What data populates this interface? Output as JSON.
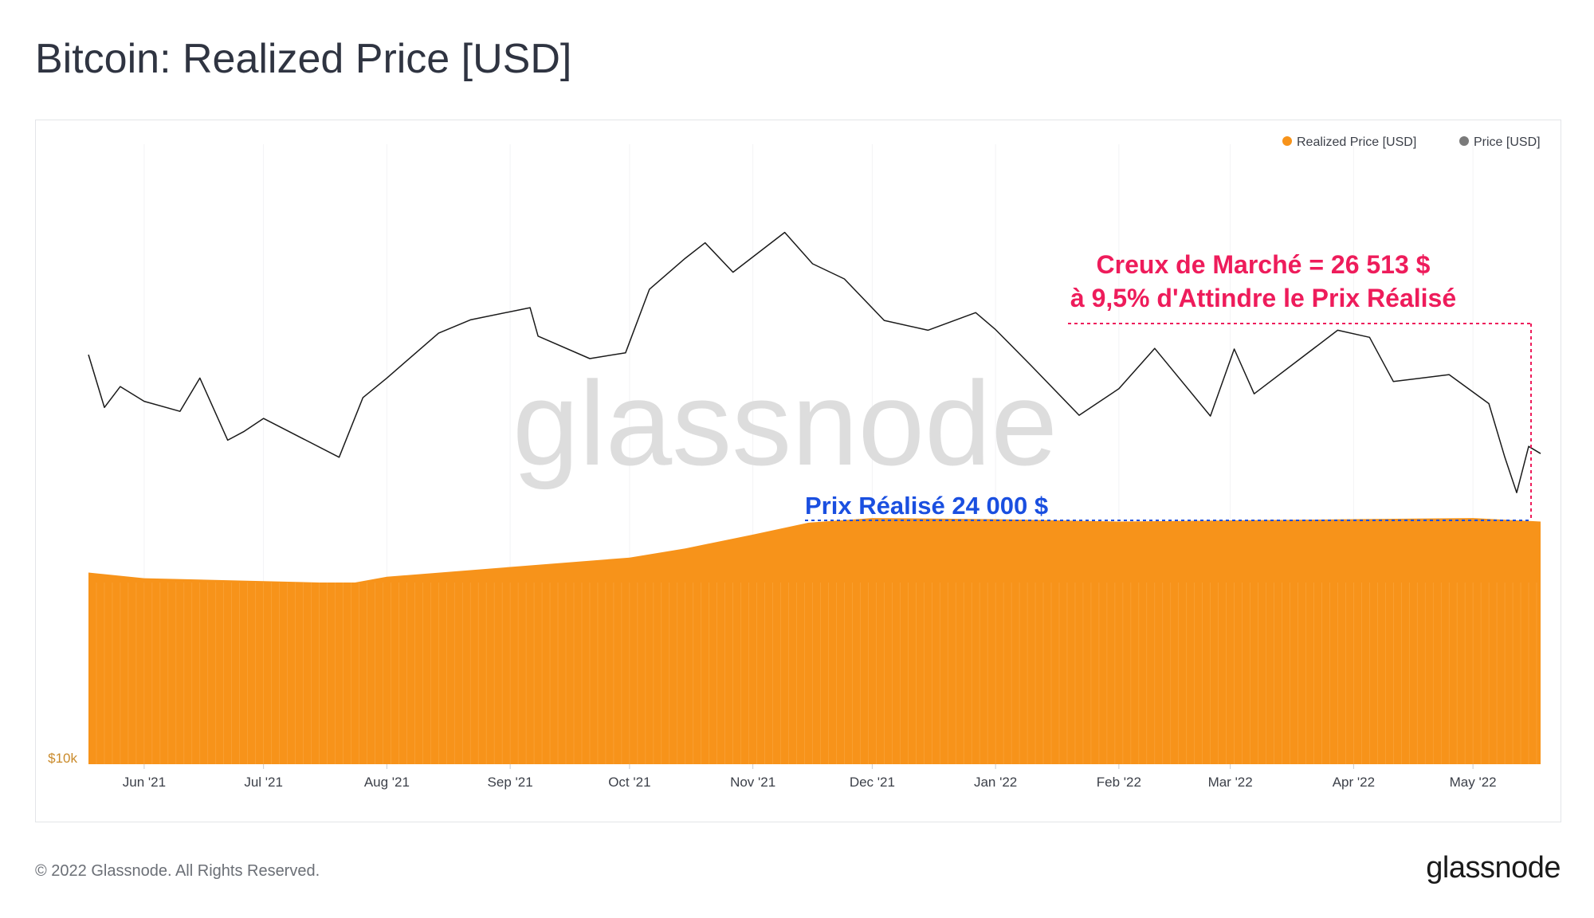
{
  "title": "Bitcoin: Realized Price [USD]",
  "footer": "© 2022 Glassnode. All Rights Reserved.",
  "brand": "glassnode",
  "watermark": "glassnode",
  "colors": {
    "realized": "#f7931a",
    "price": "#1a1a1a",
    "annotation_red": "#ee1c5b",
    "annotation_blue": "#1a4fe0",
    "legend_grey": "#7a7a7a"
  },
  "chart_data": {
    "type": "area",
    "x_labels": [
      "Jun '21",
      "Jul '21",
      "Aug '21",
      "Sep '21",
      "Oct '21",
      "Nov '21",
      "Dec '21",
      "Jan '22",
      "Feb '22",
      "Mar '22",
      "Apr '22",
      "May '22"
    ],
    "x_range": [
      "2021-05-18",
      "2022-05-18"
    ],
    "y_scale": "log",
    "y_tick_label": "$10k",
    "y_range": [
      10000,
      90000
    ],
    "legend": {
      "position": "top-right",
      "items": [
        {
          "label": "Realized Price [USD]",
          "color": "#f7931a"
        },
        {
          "label": "Price [USD]",
          "color": "#7a7a7a"
        }
      ]
    },
    "series": [
      {
        "name": "Realized Price [USD]",
        "style": "area",
        "points": [
          [
            "2021-05-18",
            19900
          ],
          [
            "2021-06-01",
            19500
          ],
          [
            "2021-07-01",
            19300
          ],
          [
            "2021-07-15",
            19200
          ],
          [
            "2021-07-24",
            19200
          ],
          [
            "2021-08-01",
            19600
          ],
          [
            "2021-09-01",
            20300
          ],
          [
            "2021-10-01",
            21000
          ],
          [
            "2021-10-15",
            21700
          ],
          [
            "2021-11-01",
            22800
          ],
          [
            "2021-11-15",
            23800
          ],
          [
            "2021-12-01",
            24200
          ],
          [
            "2022-01-01",
            24100
          ],
          [
            "2022-02-01",
            23900
          ],
          [
            "2022-03-01",
            24000
          ],
          [
            "2022-04-01",
            24100
          ],
          [
            "2022-05-01",
            24200
          ],
          [
            "2022-05-18",
            23900
          ]
        ]
      },
      {
        "name": "Price [USD]",
        "style": "line",
        "points": [
          [
            "2021-05-18",
            43500
          ],
          [
            "2021-05-22",
            36000
          ],
          [
            "2021-05-26",
            38800
          ],
          [
            "2021-06-01",
            36800
          ],
          [
            "2021-06-10",
            35500
          ],
          [
            "2021-06-15",
            40000
          ],
          [
            "2021-06-22",
            32000
          ],
          [
            "2021-06-26",
            33000
          ],
          [
            "2021-07-01",
            34600
          ],
          [
            "2021-07-20",
            30100
          ],
          [
            "2021-07-26",
            37300
          ],
          [
            "2021-08-01",
            40000
          ],
          [
            "2021-08-14",
            47000
          ],
          [
            "2021-08-22",
            49300
          ],
          [
            "2021-09-06",
            51500
          ],
          [
            "2021-09-08",
            46500
          ],
          [
            "2021-09-21",
            42900
          ],
          [
            "2021-09-30",
            43800
          ],
          [
            "2021-10-06",
            55000
          ],
          [
            "2021-10-15",
            61500
          ],
          [
            "2021-10-20",
            65000
          ],
          [
            "2021-10-27",
            58500
          ],
          [
            "2021-11-09",
            67500
          ],
          [
            "2021-11-16",
            60300
          ],
          [
            "2021-11-24",
            57100
          ],
          [
            "2021-12-04",
            49200
          ],
          [
            "2021-12-15",
            47500
          ],
          [
            "2021-12-27",
            50600
          ],
          [
            "2022-01-01",
            47600
          ],
          [
            "2022-01-10",
            41800
          ],
          [
            "2022-01-22",
            35000
          ],
          [
            "2022-02-01",
            38500
          ],
          [
            "2022-02-10",
            44500
          ],
          [
            "2022-02-24",
            34900
          ],
          [
            "2022-03-02",
            44400
          ],
          [
            "2022-03-07",
            37800
          ],
          [
            "2022-03-28",
            47500
          ],
          [
            "2022-04-05",
            46300
          ],
          [
            "2022-04-11",
            39500
          ],
          [
            "2022-04-25",
            40500
          ],
          [
            "2022-05-05",
            36500
          ],
          [
            "2022-05-09",
            30100
          ],
          [
            "2022-05-12",
            26513
          ],
          [
            "2022-05-15",
            31300
          ],
          [
            "2022-05-18",
            30500
          ]
        ]
      }
    ],
    "annotations": [
      {
        "text": [
          "Creux de Marché = 26 513 $",
          "à 9,5% d'Attindre le Prix Réalisé"
        ],
        "color": "#ee1c5b"
      },
      {
        "text": "Prix Réalisé 24 000 $",
        "color": "#1a4fe0"
      }
    ]
  }
}
